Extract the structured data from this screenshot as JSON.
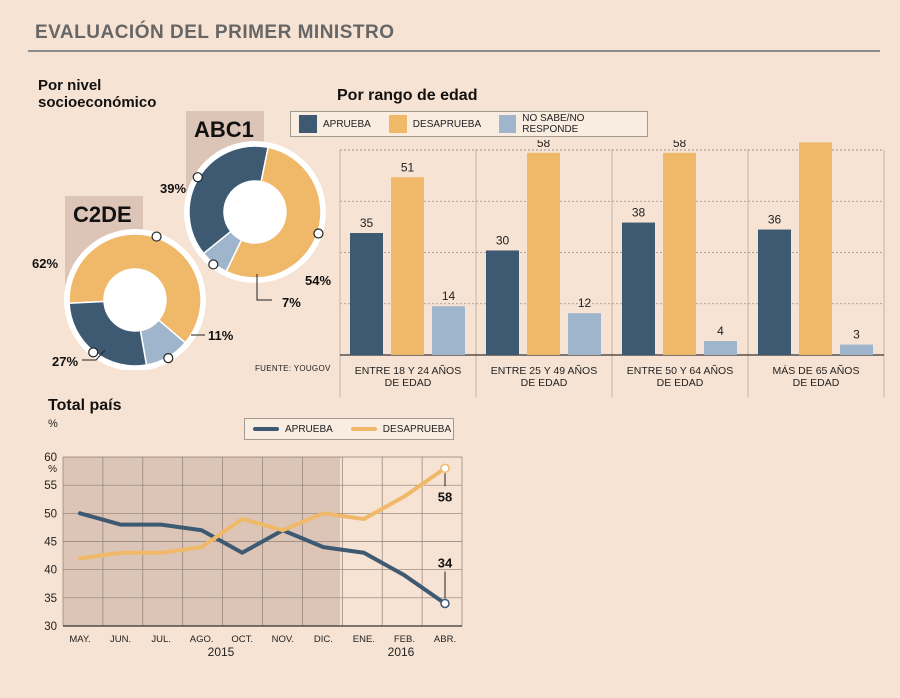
{
  "header": {
    "title": "EVALUACIÓN DEL PRIMER MINISTRO"
  },
  "colors": {
    "aprueba": "#3e5a73",
    "desaprueba": "#f0b96a",
    "ns": "#9fb5cc",
    "background": "#f7e3d3"
  },
  "socio": {
    "title_line1": "Por nivel",
    "title_line2": "socioeconómico",
    "charts": [
      {
        "label": "ABC1",
        "segments": [
          {
            "name": "aprueba",
            "value": 39,
            "label": "39%"
          },
          {
            "name": "desaprueba",
            "value": 54,
            "label": "54%"
          },
          {
            "name": "ns",
            "value": 7,
            "label": "7%"
          }
        ]
      },
      {
        "label": "C2DE",
        "segments": [
          {
            "name": "desaprueba",
            "value": 62,
            "label": "62%"
          },
          {
            "name": "ns",
            "value": 11,
            "label": "11%"
          },
          {
            "name": "aprueba",
            "value": 27,
            "label": "27%"
          }
        ]
      }
    ]
  },
  "age": {
    "title": "Por rango de edad",
    "legend": {
      "aprueba": "APRUEBA",
      "desaprueba": "DESAPRUEBA",
      "ns": "NO SABE/NO RESPONDE"
    }
  },
  "source": "FUENTE: YOUGOV",
  "total": {
    "title": "Total país",
    "unit": "%",
    "legend": {
      "aprueba": "APRUEBA",
      "desaprueba": "DESAPRUEBA"
    },
    "year_2015": "2015",
    "year_2016": "2016"
  },
  "chart_data": [
    {
      "type": "pie",
      "title": "ABC1",
      "categories": [
        "Aprueba",
        "Desaprueba",
        "No sabe/No responde"
      ],
      "values": [
        39,
        54,
        7
      ]
    },
    {
      "type": "pie",
      "title": "C2DE",
      "categories": [
        "Desaprueba",
        "No sabe/No responde",
        "Aprueba"
      ],
      "values": [
        62,
        11,
        27
      ]
    },
    {
      "type": "bar",
      "title": "Por rango de edad",
      "categories": [
        [
          "ENTRE 18 Y 24 AÑOS",
          "DE EDAD"
        ],
        [
          "ENTRE 25 Y 49 AÑOS",
          "DE EDAD"
        ],
        [
          "ENTRE 50 Y 64 AÑOS",
          "DE EDAD"
        ],
        [
          "MÁS DE 65 AÑOS",
          "DE EDAD"
        ]
      ],
      "series": [
        {
          "name": "APRUEBA",
          "values": [
            35,
            30,
            38,
            36
          ]
        },
        {
          "name": "DESAPRUEBA",
          "values": [
            51,
            58,
            58,
            61
          ]
        },
        {
          "name": "NO SABE/NO RESPONDE",
          "values": [
            14,
            12,
            4,
            3
          ]
        }
      ],
      "ylim": [
        0,
        70
      ]
    },
    {
      "type": "line",
      "title": "Total país",
      "x": [
        "MAY.",
        "JUN.",
        "JUL.",
        "AGO.",
        "OCT.",
        "NOV.",
        "DIC.",
        "ENE.",
        "FEB.",
        "ABR."
      ],
      "series": [
        {
          "name": "APRUEBA",
          "values": [
            50,
            48,
            48,
            47,
            43,
            47,
            44,
            43,
            39,
            34
          ]
        },
        {
          "name": "DESAPRUEBA",
          "values": [
            42,
            43,
            43,
            44,
            49,
            47,
            50,
            49,
            53,
            58
          ]
        }
      ],
      "ylim": [
        30,
        60
      ],
      "yticks": [
        30,
        35,
        40,
        45,
        50,
        55,
        60
      ],
      "ylabel": "%",
      "end_labels": [
        "34",
        "58"
      ]
    }
  ]
}
